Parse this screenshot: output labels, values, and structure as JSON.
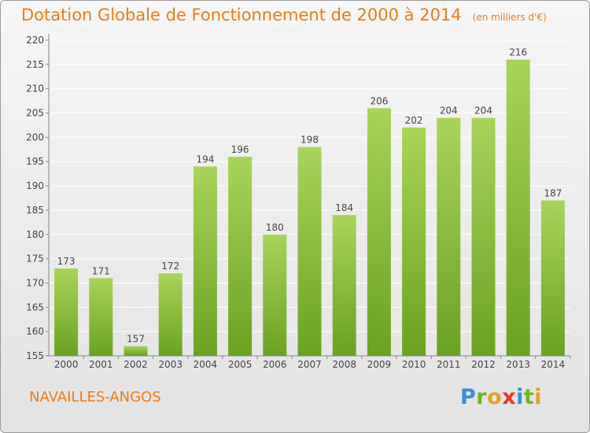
{
  "title": "Dotation Globale de Fonctionnement de 2000 à 2014",
  "unit": "(en milliers d'€)",
  "commune": "NAVAILLES-ANGOS",
  "logo": {
    "letters": [
      "P",
      "r",
      "o",
      "x",
      "i",
      "t",
      "i"
    ],
    "colors": [
      "#3a8fd8",
      "#6fb52a",
      "#e8a020",
      "#e43a2a",
      "#3a8fd8",
      "#6fb52a",
      "#e8a020"
    ]
  },
  "colors": {
    "title": "#f07a18",
    "bar_light": "#a8d45a",
    "bar_dark": "#6aa222",
    "grid": "#ffffff"
  },
  "chart_data": {
    "type": "bar",
    "categories": [
      "2000",
      "2001",
      "2002",
      "2003",
      "2004",
      "2005",
      "2006",
      "2007",
      "2008",
      "2009",
      "2010",
      "2011",
      "2012",
      "2013",
      "2014"
    ],
    "values": [
      173,
      171,
      157,
      172,
      194,
      196,
      180,
      198,
      184,
      206,
      202,
      204,
      204,
      216,
      187
    ],
    "ylim": [
      155,
      220
    ],
    "yticks": [
      155,
      160,
      165,
      170,
      175,
      180,
      185,
      190,
      195,
      200,
      205,
      210,
      215,
      220
    ],
    "grid": true,
    "data_labels": true,
    "xlabel": "",
    "ylabel": ""
  }
}
